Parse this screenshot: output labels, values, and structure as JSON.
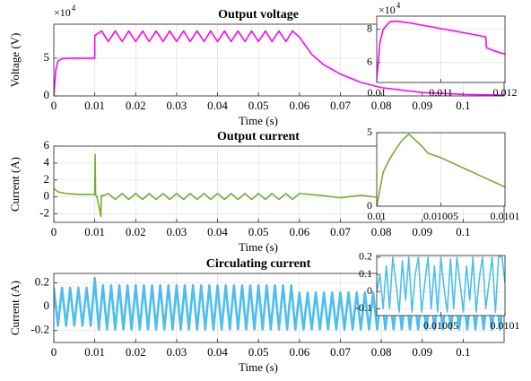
{
  "chart_data": [
    {
      "type": "line",
      "title": "Output voltage",
      "xlabel": "Time (s)",
      "ylabel": "Voltage (V)",
      "y_multiplier_base": "×10",
      "y_multiplier_exp": "4",
      "x": [
        0,
        0.0005,
        0.001,
        0.002,
        0.004,
        0.01,
        0.01,
        0.0117,
        0.0133,
        0.015,
        0.0167,
        0.0183,
        0.02,
        0.0217,
        0.0233,
        0.025,
        0.0267,
        0.0283,
        0.03,
        0.0317,
        0.0333,
        0.035,
        0.0367,
        0.0383,
        0.04,
        0.0417,
        0.0433,
        0.045,
        0.0467,
        0.0483,
        0.05,
        0.0517,
        0.0533,
        0.055,
        0.0567,
        0.0583,
        0.06,
        0.063,
        0.066,
        0.07,
        0.075,
        0.08,
        0.09,
        0.1,
        0.11
      ],
      "series": [
        {
          "color": "#ff00ff",
          "values": [
            0,
            3.5,
            4.6,
            4.95,
            5,
            5,
            8.0,
            8.6,
            7.2,
            8.6,
            7.2,
            8.6,
            7.2,
            8.6,
            7.2,
            8.6,
            7.2,
            8.6,
            7.2,
            8.6,
            7.2,
            8.6,
            7.2,
            8.6,
            7.2,
            8.6,
            7.2,
            8.6,
            7.2,
            8.6,
            7.2,
            8.6,
            7.2,
            8.6,
            7.2,
            8.6,
            7.8,
            5.5,
            4.1,
            2.9,
            1.8,
            1.1,
            0.45,
            0.2,
            0.1
          ]
        }
      ],
      "xlim": [
        0,
        0.11
      ],
      "ylim": [
        0,
        9.5
      ],
      "xticks": [
        0,
        0.01,
        0.02,
        0.03,
        0.04,
        0.05,
        0.06,
        0.07,
        0.08,
        0.09,
        0.1
      ],
      "yticks": [
        0,
        5
      ],
      "grid": true
    },
    {
      "type": "line",
      "y_multiplier_base": "×10",
      "y_multiplier_exp": "4",
      "x": [
        0.01,
        0.01005,
        0.0101,
        0.0102,
        0.0103,
        0.0105,
        0.011,
        0.0115,
        0.0117,
        0.01171,
        0.0118,
        0.012
      ],
      "series": [
        {
          "color": "#ff00ff",
          "values": [
            5.0,
            7.2,
            8.0,
            8.45,
            8.5,
            8.4,
            8.05,
            7.7,
            7.55,
            6.9,
            6.75,
            6.5
          ]
        }
      ],
      "xlim": [
        0.01,
        0.012
      ],
      "ylim": [
        4.8,
        8.8
      ],
      "xticks": [
        0.01,
        0.011,
        0.012
      ],
      "yticks": [
        6,
        8
      ],
      "grid": true
    },
    {
      "type": "line",
      "title": "Output current",
      "xlabel": "Time (s)",
      "ylabel": "Current (A)",
      "x": [
        0,
        0.001,
        0.003,
        0.006,
        0.01,
        0.0101,
        0.0102,
        0.0105,
        0.0115,
        0.0116,
        0.0118,
        0.0133,
        0.015,
        0.0167,
        0.0183,
        0.02,
        0.0217,
        0.0233,
        0.025,
        0.0267,
        0.0283,
        0.03,
        0.0317,
        0.0333,
        0.035,
        0.0367,
        0.0383,
        0.04,
        0.0417,
        0.0433,
        0.045,
        0.0467,
        0.0483,
        0.05,
        0.0517,
        0.0533,
        0.055,
        0.0567,
        0.0583,
        0.06,
        0.065,
        0.07,
        0.075,
        0.08,
        0.085,
        0.09,
        0.095,
        0.1,
        0.11
      ],
      "series": [
        {
          "color": "#77ac30",
          "values": [
            1.0,
            0.6,
            0.4,
            0.3,
            0.3,
            5.0,
            0.2,
            0.1,
            -2.3,
            0.2,
            0.1,
            0.4,
            -0.3,
            0.4,
            -0.3,
            0.4,
            -0.3,
            0.4,
            -0.3,
            0.4,
            -0.3,
            0.4,
            -0.3,
            0.4,
            -0.3,
            0.4,
            -0.3,
            0.4,
            -0.3,
            0.4,
            -0.3,
            0.4,
            -0.3,
            0.4,
            -0.3,
            0.4,
            -0.3,
            0.4,
            -0.3,
            0.4,
            0.2,
            -0.1,
            0.2,
            -0.1,
            0.2,
            -0.1,
            0.15,
            -0.05,
            0.1
          ]
        }
      ],
      "xlim": [
        0,
        0.11
      ],
      "ylim": [
        -3,
        6
      ],
      "xticks": [
        0,
        0.01,
        0.02,
        0.03,
        0.04,
        0.05,
        0.06,
        0.07,
        0.08,
        0.09,
        0.1
      ],
      "yticks": [
        -2,
        0,
        2,
        4,
        6
      ],
      "grid": true
    },
    {
      "type": "line",
      "x": [
        0.01,
        0.010005,
        0.01001,
        0.010015,
        0.01002,
        0.010025,
        0.01003,
        0.010035,
        0.01004,
        0.01005,
        0.01006,
        0.01007,
        0.01008,
        0.01009,
        0.0101
      ],
      "series": [
        {
          "color": "#77ac30",
          "values": [
            0,
            2.3,
            3.2,
            3.9,
            4.5,
            4.9,
            4.5,
            4.1,
            3.6,
            3.3,
            2.9,
            2.5,
            2.1,
            1.7,
            1.3
          ]
        }
      ],
      "xlim": [
        0.01,
        0.0101
      ],
      "ylim": [
        0,
        5
      ],
      "xticks": [
        0.01,
        0.01005,
        0.0101
      ],
      "yticks": [
        0,
        5
      ],
      "grid": true
    },
    {
      "type": "line",
      "title": "Circulating current",
      "xlabel": "Time (s)",
      "ylabel": "Current (A)",
      "x": [
        0,
        0.001,
        0.002,
        0.003,
        0.004,
        0.005,
        0.006,
        0.007,
        0.008,
        0.009,
        0.01,
        0.011,
        0.012,
        0.013,
        0.014,
        0.015,
        0.016,
        0.017,
        0.018,
        0.019,
        0.02,
        0.021,
        0.022,
        0.023,
        0.024,
        0.025,
        0.026,
        0.027,
        0.028,
        0.029,
        0.03,
        0.031,
        0.032,
        0.033,
        0.034,
        0.035,
        0.036,
        0.037,
        0.038,
        0.039,
        0.04,
        0.041,
        0.042,
        0.043,
        0.044,
        0.045,
        0.046,
        0.047,
        0.048,
        0.049,
        0.05,
        0.051,
        0.052,
        0.053,
        0.054,
        0.055,
        0.056,
        0.057,
        0.058,
        0.059,
        0.06,
        0.061,
        0.062,
        0.063,
        0.064,
        0.065,
        0.066,
        0.067,
        0.068,
        0.069,
        0.07,
        0.071,
        0.072,
        0.073,
        0.074,
        0.075,
        0.076,
        0.077,
        0.078,
        0.079,
        0.08,
        0.081,
        0.082,
        0.083,
        0.084,
        0.085,
        0.086,
        0.087,
        0.088,
        0.089,
        0.09,
        0.091,
        0.092,
        0.093,
        0.094,
        0.095,
        0.096,
        0.097,
        0.098,
        0.099,
        0.1,
        0.101,
        0.102,
        0.103,
        0.104,
        0.105,
        0.106,
        0.107,
        0.108,
        0.109,
        0.11
      ],
      "series": [
        {
          "color": "#4dbeee",
          "values": [
            0.16,
            -0.16,
            0.16,
            -0.16,
            0.16,
            -0.16,
            0.16,
            -0.16,
            0.16,
            -0.16,
            0.24,
            -0.19,
            0.18,
            -0.19,
            0.18,
            -0.19,
            0.18,
            -0.19,
            0.18,
            -0.19,
            0.18,
            -0.19,
            0.18,
            -0.19,
            0.18,
            -0.19,
            0.18,
            -0.19,
            0.18,
            -0.19,
            0.18,
            -0.19,
            0.18,
            -0.19,
            0.18,
            -0.19,
            0.18,
            -0.19,
            0.18,
            -0.19,
            0.18,
            -0.19,
            0.18,
            -0.19,
            0.18,
            -0.19,
            0.18,
            -0.19,
            0.18,
            -0.19,
            0.18,
            -0.19,
            0.18,
            -0.19,
            0.18,
            -0.19,
            0.18,
            -0.19,
            0.18,
            -0.19,
            0.12,
            -0.19,
            0.12,
            -0.19,
            0.12,
            -0.19,
            0.12,
            -0.19,
            0.12,
            -0.19,
            0.12,
            -0.19,
            0.12,
            -0.19,
            0.12,
            -0.19,
            0.12,
            -0.19,
            0.12,
            -0.19,
            0.12,
            -0.19,
            0.12,
            -0.19,
            0.12,
            -0.19,
            0.12,
            -0.19,
            0.12,
            -0.19,
            0.12,
            -0.19,
            0.12,
            -0.19,
            0.12,
            -0.19,
            0.12,
            -0.19,
            0.12,
            -0.19,
            0.12,
            -0.19,
            0.12,
            -0.19,
            0.12,
            -0.19,
            0.12,
            -0.19,
            0.12,
            -0.19,
            0.12
          ]
        }
      ],
      "xlim": [
        0,
        0.11
      ],
      "ylim": [
        -0.3,
        0.28
      ],
      "xticks": [
        0,
        0.01,
        0.02,
        0.03,
        0.04,
        0.05,
        0.06,
        0.07,
        0.08,
        0.09,
        0.1
      ],
      "yticks": [
        -0.2,
        0,
        0.2
      ],
      "grid": true
    },
    {
      "type": "line",
      "x": [
        0.01,
        0.0100025,
        0.010005,
        0.0100075,
        0.01001,
        0.0100125,
        0.010015,
        0.0100175,
        0.01002,
        0.0100225,
        0.010025,
        0.0100275,
        0.01003,
        0.0100325,
        0.010035,
        0.0100375,
        0.01004,
        0.0100425,
        0.010045,
        0.0100475,
        0.01005,
        0.0100525,
        0.010055,
        0.0100575,
        0.01006,
        0.0100625,
        0.010065,
        0.0100675,
        0.01007,
        0.0100725,
        0.010075,
        0.0100775,
        0.01008,
        0.0100825,
        0.010085,
        0.0100875,
        0.01009,
        0.0100925,
        0.010095,
        0.0100975,
        0.0101
      ],
      "series": [
        {
          "color": "#4dbeee",
          "values": [
            0,
            0.1,
            -0.1,
            0.15,
            -0.1,
            0.2,
            0.05,
            -0.12,
            0.18,
            -0.05,
            0.2,
            -0.12,
            0.1,
            0.2,
            -0.12,
            0.05,
            0.2,
            -0.1,
            0.15,
            -0.12,
            0.2,
            0.02,
            -0.12,
            0.19,
            -0.1,
            0.2,
            0.05,
            -0.12,
            0.15,
            -0.05,
            0.2,
            -0.12,
            0.08,
            0.2,
            -0.1,
            0.05,
            0.2,
            -0.12,
            0.2,
            0.21,
            0.05
          ]
        }
      ],
      "xlim": [
        0.01,
        0.0101
      ],
      "ylim": [
        -0.14,
        0.21
      ],
      "xticks": [
        0.01005,
        0.0101
      ],
      "yticks": [
        -0.1,
        0,
        0.1,
        0.2
      ],
      "grid": true
    }
  ]
}
